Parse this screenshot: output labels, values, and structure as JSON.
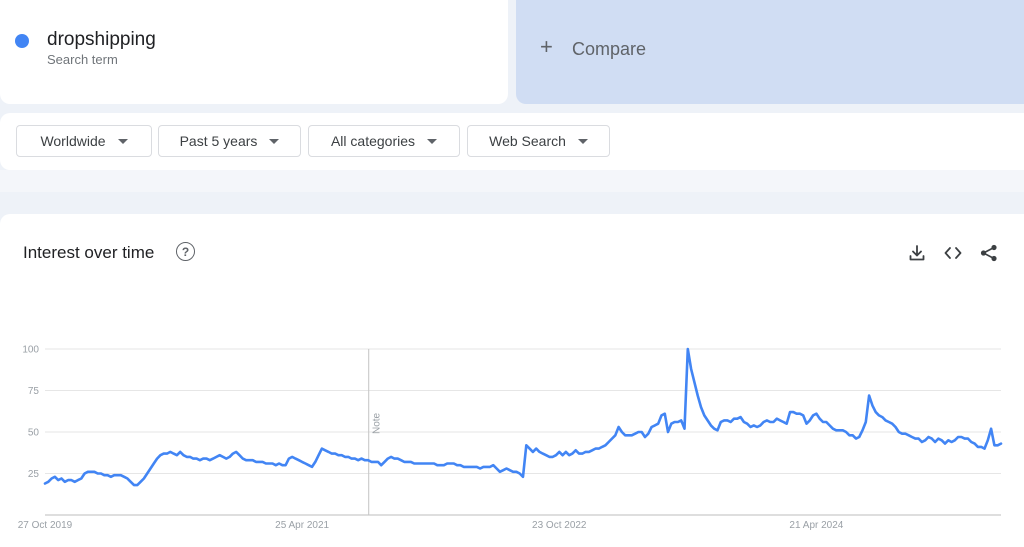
{
  "search_term": {
    "name": "dropshipping",
    "subtitle": "Search term",
    "color": "#4285f4"
  },
  "compare": {
    "label": "Compare"
  },
  "filters": {
    "region": "Worldwide",
    "period": "Past 5 years",
    "category": "All categories",
    "property": "Web Search"
  },
  "chart_header": {
    "title": "Interest over time",
    "help_icon": "help-circle-icon",
    "actions": [
      "download-icon",
      "embed-code-icon",
      "share-icon"
    ]
  },
  "chart_data": {
    "type": "line",
    "title": "Interest over time",
    "xlabel": "",
    "ylabel": "",
    "ylim": [
      0,
      100
    ],
    "yticks": [
      25,
      50,
      75,
      100
    ],
    "grid": true,
    "legend": "none",
    "x_tick_labels": [
      "27 Oct 2019",
      "25 Apr 2021",
      "23 Oct 2022",
      "21 Apr 2024"
    ],
    "annotation": {
      "label": "Note",
      "after_week": 98
    },
    "series": [
      {
        "name": "dropshipping",
        "color": "#4285f4",
        "values": [
          19,
          20,
          22,
          23,
          21,
          22,
          20,
          21,
          21,
          20,
          21,
          22,
          25,
          26,
          26,
          26,
          25,
          25,
          24,
          24,
          23,
          24,
          24,
          24,
          23,
          22,
          20,
          18,
          18,
          20,
          22,
          25,
          28,
          31,
          34,
          36,
          37,
          37,
          38,
          37,
          36,
          38,
          36,
          35,
          35,
          34,
          34,
          33,
          34,
          34,
          33,
          34,
          35,
          36,
          35,
          34,
          35,
          37,
          38,
          36,
          34,
          33,
          33,
          33,
          32,
          32,
          32,
          31,
          31,
          31,
          30,
          31,
          30,
          30,
          34,
          35,
          34,
          33,
          32,
          31,
          30,
          29,
          32,
          36,
          40,
          39,
          38,
          37,
          37,
          36,
          36,
          35,
          35,
          34,
          34,
          33,
          34,
          33,
          33,
          32,
          32,
          32,
          30,
          32,
          34,
          35,
          34,
          34,
          33,
          32,
          32,
          32,
          31,
          31,
          31,
          31,
          31,
          31,
          31,
          30,
          30,
          30,
          31,
          31,
          31,
          30,
          30,
          29,
          29,
          29,
          29,
          29,
          28,
          29,
          29,
          29,
          30,
          28,
          26,
          27,
          28,
          27,
          26,
          26,
          25,
          23,
          42,
          40,
          38,
          40,
          38,
          37,
          36,
          35,
          35,
          36,
          38,
          36,
          38,
          36,
          37,
          39,
          37,
          37,
          38,
          38,
          39,
          40,
          40,
          41,
          42,
          44,
          46,
          48,
          53,
          50,
          48,
          48,
          48,
          49,
          50,
          50,
          47,
          49,
          53,
          54,
          55,
          60,
          61,
          50,
          55,
          56,
          56,
          57,
          52,
          100,
          88,
          80,
          72,
          65,
          60,
          57,
          54,
          52,
          51,
          56,
          57,
          57,
          56,
          58,
          58,
          59,
          56,
          55,
          53,
          54,
          53,
          54,
          56,
          57,
          56,
          56,
          58,
          57,
          56,
          55,
          62,
          62,
          61,
          61,
          60,
          55,
          57,
          60,
          61,
          58,
          56,
          56,
          54,
          52,
          51,
          51,
          51,
          50,
          48,
          48,
          46,
          47,
          51,
          56,
          72,
          66,
          62,
          60,
          59,
          57,
          56,
          55,
          53,
          50,
          49,
          49,
          48,
          47,
          46,
          46,
          44,
          45,
          47,
          46,
          44,
          46,
          45,
          43,
          45,
          44,
          45,
          47,
          47,
          46,
          46,
          44,
          43,
          41,
          41,
          40,
          45,
          52,
          42,
          42,
          43
        ]
      }
    ]
  }
}
